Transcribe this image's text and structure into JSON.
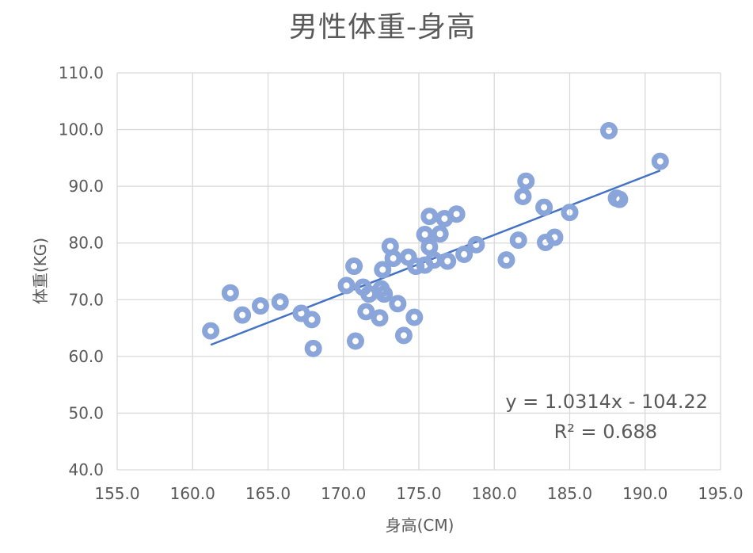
{
  "chart_data": {
    "type": "scatter",
    "title": "男性体重-身高",
    "xlabel": "身高(CM)",
    "ylabel": "体重(KG)",
    "xlim": [
      155,
      195
    ],
    "ylim": [
      40,
      110
    ],
    "x_ticks": [
      "155.0",
      "160.0",
      "165.0",
      "170.0",
      "175.0",
      "180.0",
      "185.0",
      "190.0",
      "195.0"
    ],
    "y_ticks": [
      "40.0",
      "50.0",
      "60.0",
      "70.0",
      "80.0",
      "90.0",
      "100.0",
      "110.0"
    ],
    "grid": true,
    "series": [
      {
        "color": "#8aa5d9",
        "points": [
          [
            161.2,
            64.5
          ],
          [
            162.5,
            71.2
          ],
          [
            163.3,
            67.3
          ],
          [
            164.5,
            68.9
          ],
          [
            165.8,
            69.6
          ],
          [
            167.2,
            67.6
          ],
          [
            167.9,
            66.5
          ],
          [
            168.0,
            61.4
          ],
          [
            170.2,
            72.5
          ],
          [
            170.7,
            75.9
          ],
          [
            170.8,
            62.7
          ],
          [
            171.3,
            72.2
          ],
          [
            171.5,
            67.9
          ],
          [
            171.7,
            71.0
          ],
          [
            172.4,
            66.8
          ],
          [
            172.5,
            71.9
          ],
          [
            172.6,
            75.3
          ],
          [
            172.7,
            71.0
          ],
          [
            173.1,
            79.4
          ],
          [
            173.3,
            77.3
          ],
          [
            173.6,
            69.3
          ],
          [
            174.0,
            63.7
          ],
          [
            174.3,
            77.5
          ],
          [
            174.7,
            66.9
          ],
          [
            174.8,
            75.9
          ],
          [
            175.4,
            81.5
          ],
          [
            175.4,
            76.1
          ],
          [
            175.7,
            84.7
          ],
          [
            175.7,
            79.3
          ],
          [
            176.0,
            77.0
          ],
          [
            176.4,
            81.6
          ],
          [
            176.7,
            84.3
          ],
          [
            176.9,
            76.8
          ],
          [
            177.5,
            85.1
          ],
          [
            178.0,
            78.0
          ],
          [
            178.8,
            79.7
          ],
          [
            180.8,
            77.0
          ],
          [
            181.6,
            80.5
          ],
          [
            181.9,
            88.2
          ],
          [
            182.1,
            90.9
          ],
          [
            183.3,
            86.3
          ],
          [
            183.4,
            80.1
          ],
          [
            184.0,
            81.0
          ],
          [
            185.0,
            85.4
          ],
          [
            187.6,
            99.8
          ],
          [
            188.1,
            87.9
          ],
          [
            188.3,
            87.7
          ],
          [
            191.0,
            94.4
          ]
        ]
      }
    ],
    "trendline": {
      "slope": 1.0314,
      "intercept": -104.22,
      "x_range": [
        161.2,
        191.0
      ],
      "color": "#4472c4",
      "equation": "y = 1.0314x - 104.22",
      "r_squared": "R² = 0.688"
    }
  }
}
